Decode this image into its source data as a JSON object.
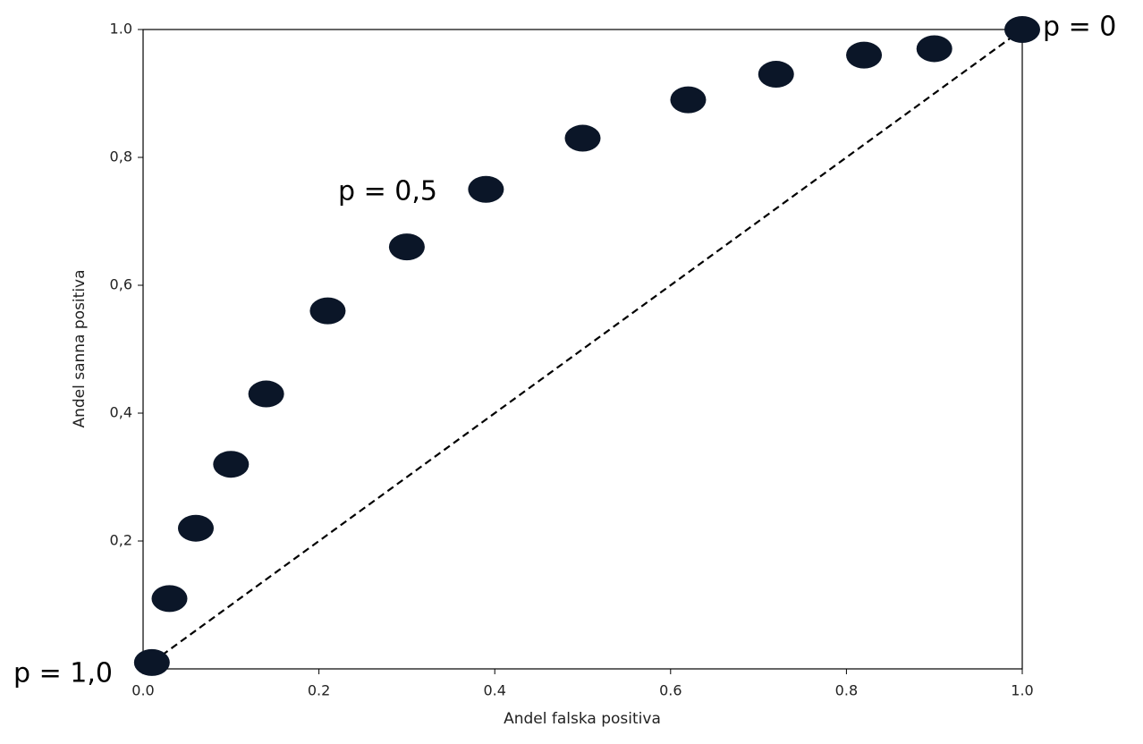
{
  "chart_data": {
    "type": "scatter",
    "xlabel": "Andel falska positiva",
    "ylabel": "Andel sanna positiva",
    "xlim": [
      0,
      1
    ],
    "ylim": [
      0,
      1
    ],
    "xticks": [
      {
        "value": 0,
        "label": "0.0"
      },
      0.2,
      0.4,
      0.6,
      0.8,
      {
        "value": 1,
        "label": "1.0"
      }
    ],
    "yticks": [
      {
        "value": 0.2,
        "label": "0,2"
      },
      {
        "value": 0.4,
        "label": "0,4"
      },
      {
        "value": 0.6,
        "label": "0,6"
      },
      {
        "value": 0.8,
        "label": "0,8"
      },
      {
        "value": 1,
        "label": "1.0"
      }
    ],
    "series": [
      {
        "color": "#0b1628",
        "x": [
          0.01,
          0.03,
          0.06,
          0.1,
          0.14,
          0.21,
          0.3,
          0.39,
          0.5,
          0.62,
          0.72,
          0.82,
          0.9,
          1.0
        ],
        "values": [
          0.01,
          0.11,
          0.22,
          0.32,
          0.43,
          0.56,
          0.66,
          0.75,
          0.83,
          0.89,
          0.93,
          0.96,
          0.97,
          1.0
        ]
      }
    ],
    "reference_line": {
      "x": [
        0,
        1
      ],
      "y": [
        0,
        1
      ],
      "color": "#000000",
      "dashed": true
    },
    "annotations": [
      "p = 1,0",
      "p = 0,5",
      "p = 0"
    ]
  }
}
